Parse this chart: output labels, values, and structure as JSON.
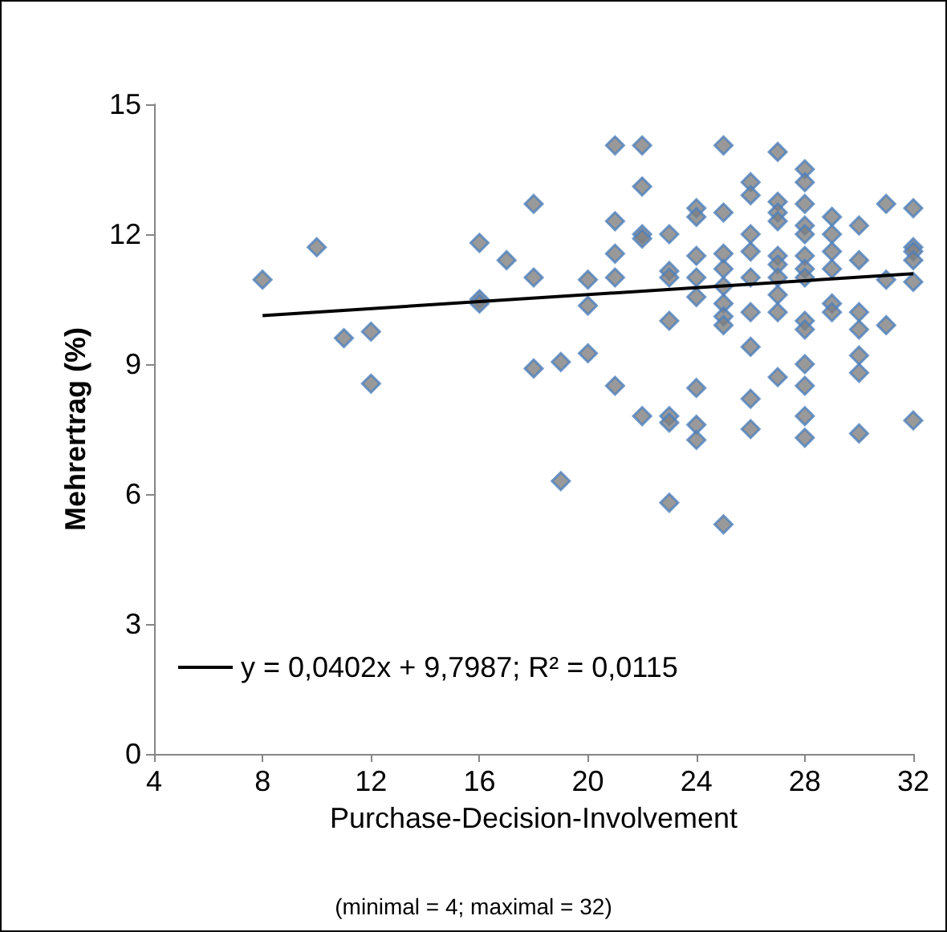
{
  "chart_data": {
    "type": "scatter",
    "xlabel": "Purchase-Decision-Involvement",
    "ylabel": "Mehrertrag (%)",
    "annotations": [
      "(minimal = 4; maximal = 32)"
    ],
    "marker": "diamond",
    "grid": false,
    "legend": "bottom left",
    "xlim": [
      4,
      32
    ],
    "xticks": [
      4,
      8,
      12,
      16,
      20,
      24,
      28,
      32
    ],
    "ylim": [
      0,
      15
    ],
    "yticks": [
      0,
      3,
      6,
      9,
      12,
      15
    ],
    "series": [
      {
        "color": "#7f7f7f",
        "x": [
          8,
          10,
          11,
          12,
          12,
          16,
          16,
          16,
          17,
          18,
          18,
          18,
          19,
          19,
          20,
          20,
          20,
          21,
          21,
          21,
          21,
          21,
          22,
          22,
          22,
          22,
          22,
          23,
          23,
          23,
          23,
          23,
          23,
          23,
          24,
          24,
          24,
          24,
          24,
          24,
          24,
          24,
          25,
          25,
          25,
          25,
          25,
          25,
          25,
          25,
          25,
          26,
          26,
          26,
          26,
          26,
          26,
          26,
          26,
          26,
          27,
          27,
          27,
          27,
          27,
          27,
          27,
          27,
          27,
          27,
          28,
          28,
          28,
          28,
          28,
          28,
          28,
          28,
          28,
          28,
          28,
          28,
          28,
          28,
          29,
          29,
          29,
          29,
          29,
          29,
          30,
          30,
          30,
          30,
          30,
          30,
          30,
          31,
          31,
          31,
          32,
          32,
          32,
          32,
          32,
          32
        ],
        "values": [
          10.95,
          11.7,
          9.6,
          9.75,
          8.55,
          11.8,
          10.5,
          10.4,
          11.4,
          12.7,
          11.0,
          8.9,
          9.05,
          6.3,
          10.95,
          10.35,
          9.25,
          14.05,
          12.3,
          11.55,
          11.0,
          8.5,
          14.05,
          13.1,
          12.0,
          11.9,
          7.8,
          12.0,
          11.15,
          11.0,
          10.0,
          7.8,
          7.65,
          5.8,
          12.6,
          12.4,
          11.5,
          11.0,
          10.55,
          8.45,
          7.6,
          7.25,
          14.05,
          12.5,
          11.55,
          11.2,
          10.8,
          10.4,
          10.1,
          9.9,
          5.3,
          13.2,
          12.9,
          12.0,
          11.6,
          11.0,
          10.2,
          9.4,
          8.2,
          7.5,
          13.9,
          12.75,
          12.5,
          12.3,
          11.5,
          11.3,
          11.0,
          10.6,
          10.2,
          8.7,
          13.5,
          13.2,
          12.7,
          12.2,
          12.0,
          11.5,
          11.2,
          11.0,
          10.0,
          9.8,
          9.0,
          8.5,
          7.8,
          7.3,
          12.4,
          12.0,
          11.6,
          11.2,
          10.4,
          10.2,
          12.2,
          11.4,
          10.2,
          9.8,
          9.2,
          8.8,
          7.4,
          12.7,
          10.95,
          9.9,
          12.6,
          11.7,
          11.6,
          11.4,
          10.9,
          7.7
        ]
      },
      {
        "type": "line",
        "name": "y = 0,0402x + 9,7987; R² = 0,0115",
        "color": "#000000",
        "line_style": "solid",
        "marker": "none",
        "x": [
          8,
          32
        ],
        "values": [
          10.12,
          11.09
        ]
      }
    ]
  }
}
